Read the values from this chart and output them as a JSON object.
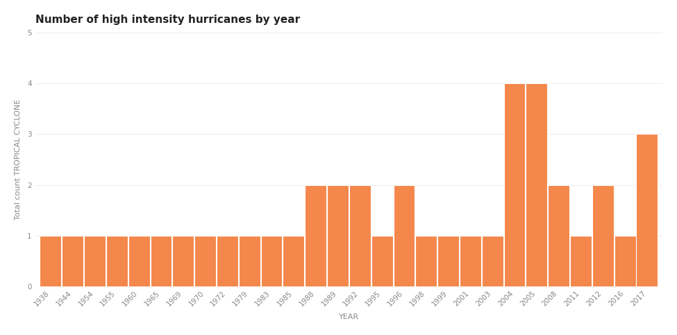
{
  "years": [
    1938,
    1944,
    1954,
    1955,
    1960,
    1965,
    1969,
    1970,
    1972,
    1979,
    1983,
    1985,
    1988,
    1989,
    1992,
    1995,
    1996,
    1998,
    1999,
    2001,
    2003,
    2004,
    2005,
    2008,
    2011,
    2012,
    2016,
    2017
  ],
  "values": [
    1,
    1,
    1,
    1,
    1,
    1,
    1,
    1,
    1,
    1,
    1,
    1,
    2,
    2,
    2,
    1,
    2,
    1,
    1,
    1,
    1,
    4,
    4,
    2,
    1,
    2,
    1,
    3
  ],
  "bar_color": "#F4874B",
  "bar_edge_color": "#FFFFFF",
  "title": "Number of high intensity hurricanes by year",
  "xlabel": "YEAR",
  "ylabel": "Total count TROPICAL CYCLONE",
  "ylim": [
    0,
    5
  ],
  "yticks": [
    0,
    1,
    2,
    3,
    4,
    5
  ],
  "background_color": "#FFFFFF",
  "plot_bg_color": "#FFFFFF",
  "title_fontsize": 11,
  "axis_label_fontsize": 8,
  "tick_fontsize": 7.5
}
